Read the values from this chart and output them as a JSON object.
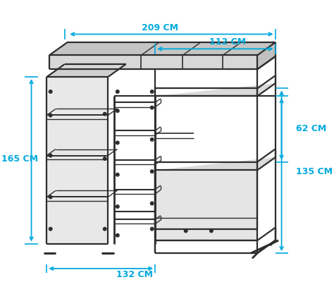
{
  "bg_color": "#ffffff",
  "line_color": "#2d2d2d",
  "arrow_color": "#00aadd",
  "text_color": "#00aadd",
  "measurements": {
    "top_width": "209 CM",
    "right_width": "112 CM",
    "left_height": "165 CM",
    "right_height": "135 CM",
    "lower_gap": "62 CM",
    "bottom_width": "132 CM"
  },
  "figsize": [
    4.74,
    4.17
  ],
  "dpi": 100
}
